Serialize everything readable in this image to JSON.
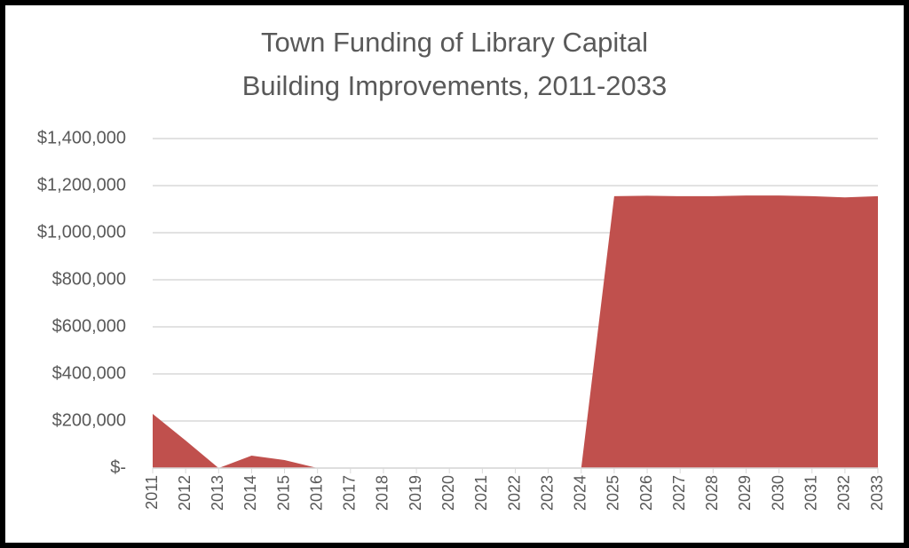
{
  "chart_data": {
    "type": "area",
    "title": [
      "Town Funding of Library Capital",
      "Building Improvements, 2011-2033"
    ],
    "categories": [
      "2011",
      "2012",
      "2013",
      "2014",
      "2015",
      "2016",
      "2017",
      "2018",
      "2019",
      "2020",
      "2021",
      "2022",
      "2023",
      "2024",
      "2025",
      "2026",
      "2027",
      "2028",
      "2029",
      "2030",
      "2031",
      "2032",
      "2033"
    ],
    "values": [
      230000,
      117000,
      0,
      53000,
      34000,
      0,
      0,
      0,
      0,
      0,
      0,
      0,
      0,
      0,
      1155000,
      1157000,
      1155000,
      1155000,
      1158000,
      1158000,
      1155000,
      1150000,
      1155000
    ],
    "color": "#c0504d",
    "ylim": [
      0,
      1400000
    ],
    "yticks": [
      {
        "value": 0,
        "label": "$-"
      },
      {
        "value": 200000,
        "label": "$200,000"
      },
      {
        "value": 400000,
        "label": "$400,000"
      },
      {
        "value": 600000,
        "label": "$600,000"
      },
      {
        "value": 800000,
        "label": "$800,000"
      },
      {
        "value": 1000000,
        "label": "$1,000,000"
      },
      {
        "value": 1200000,
        "label": "$1,200,000"
      },
      {
        "value": 1400000,
        "label": "$1,400,000"
      }
    ],
    "grid": true
  }
}
